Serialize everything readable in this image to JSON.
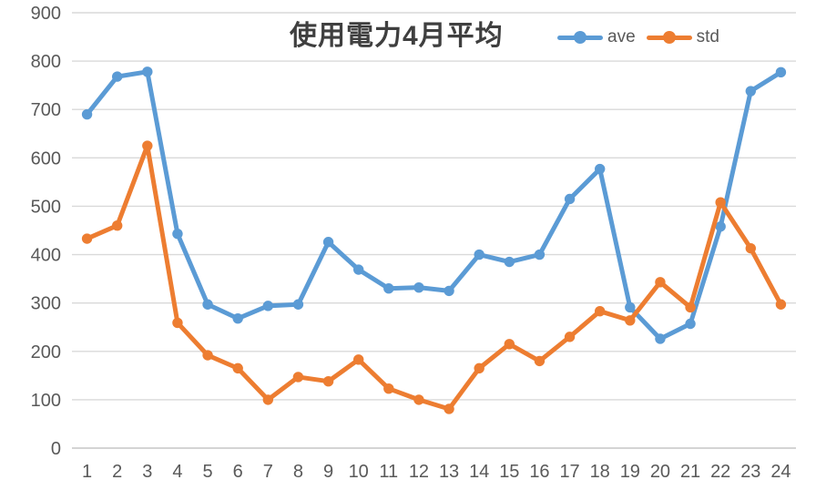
{
  "chart": {
    "title": "使用電力4月平均",
    "title_color": "#3f3f3f",
    "background": "#ffffff"
  },
  "chart_data": {
    "type": "line",
    "title": "使用電力4月平均",
    "xlabel": "",
    "ylabel": "",
    "x": [
      1,
      2,
      3,
      4,
      5,
      6,
      7,
      8,
      9,
      10,
      11,
      12,
      13,
      14,
      15,
      16,
      17,
      18,
      19,
      20,
      21,
      22,
      23,
      24
    ],
    "series": [
      {
        "name": "ave",
        "color": "#5B9BD5",
        "values": [
          690,
          768,
          778,
          443,
          297,
          268,
          294,
          297,
          426,
          369,
          330,
          332,
          325,
          400,
          385,
          400,
          515,
          577,
          291,
          226,
          257,
          458,
          738,
          777
        ]
      },
      {
        "name": "std",
        "color": "#ED7D31",
        "values": [
          433,
          460,
          625,
          259,
          192,
          165,
          100,
          147,
          138,
          183,
          123,
          100,
          81,
          165,
          215,
          180,
          230,
          283,
          264,
          343,
          291,
          508,
          413,
          297
        ]
      }
    ],
    "ylim": [
      0,
      900
    ],
    "y_ticks": [
      0,
      100,
      200,
      300,
      400,
      500,
      600,
      700,
      800,
      900
    ],
    "grid": true,
    "legend_position": "top-right",
    "gridline_color": "#D9D9D9",
    "axis_line_color": "#C6C6C6",
    "tick_label_color": "#595959",
    "tick_label_size": 20,
    "line_width": 5,
    "marker_radius": 5.7
  }
}
